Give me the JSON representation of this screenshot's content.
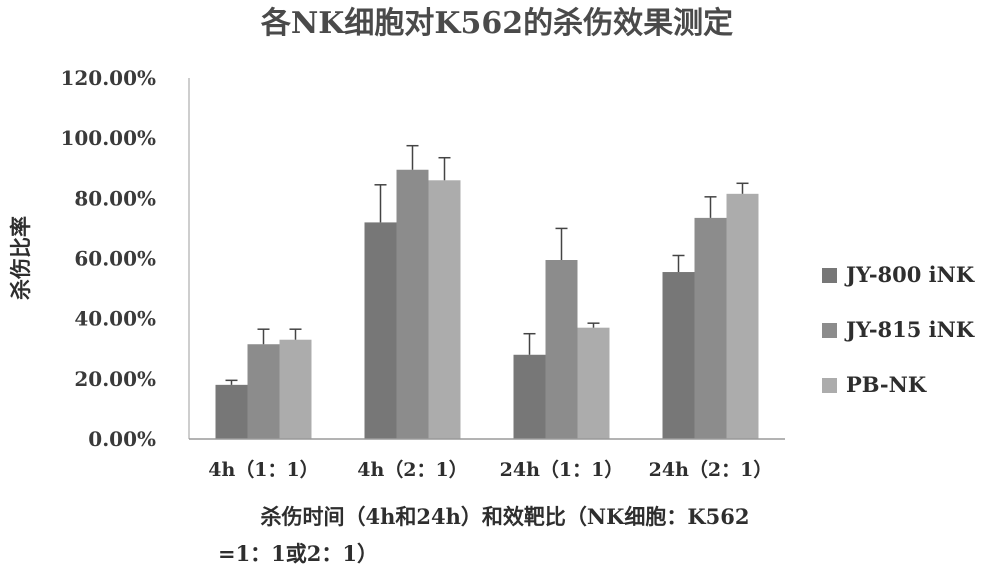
{
  "chart_data": {
    "type": "bar",
    "title": "各NK细胞对K562的杀伤效果测定",
    "ylabel": "杀伤比率",
    "xlabel_lines": [
      "杀伤时间（4h和24h）和效靶比（NK细胞：K562",
      "=1：1或2：1）"
    ],
    "categories": [
      "4h（1：1）",
      "4h（2：1）",
      "24h（1：1）",
      "24h（2：1）"
    ],
    "y_ticks": [
      "0.00%",
      "20.00%",
      "40.00%",
      "60.00%",
      "80.00%",
      "100.00%",
      "120.00%"
    ],
    "ylim": [
      0,
      120
    ],
    "grid": false,
    "legend_position": "right",
    "series": [
      {
        "name": "JY-800 iNK",
        "color": "#777777",
        "values": [
          18,
          72,
          28,
          55.5
        ],
        "errors": [
          1.5,
          12.5,
          7,
          5.5
        ]
      },
      {
        "name": "JY-815 iNK",
        "color": "#8c8c8c",
        "values": [
          31.5,
          89.5,
          59.5,
          73.5
        ],
        "errors": [
          5,
          8,
          10.5,
          7
        ]
      },
      {
        "name": "PB-NK",
        "color": "#acacac",
        "values": [
          33,
          86,
          37,
          81.5
        ],
        "errors": [
          3.5,
          7.5,
          1.5,
          3.5
        ]
      }
    ]
  }
}
